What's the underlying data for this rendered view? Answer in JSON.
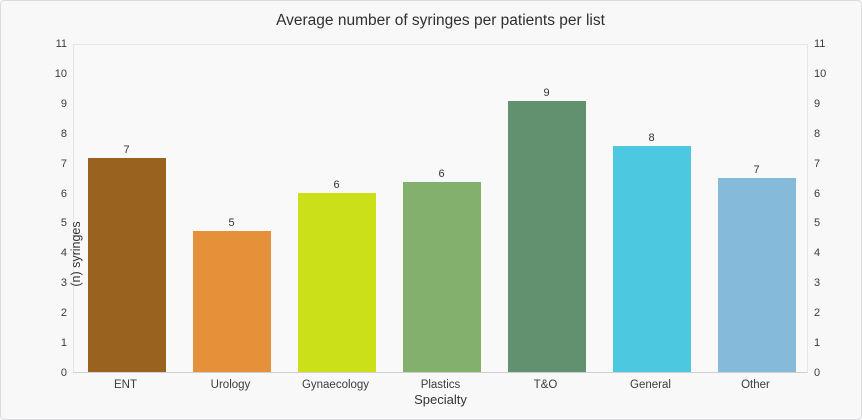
{
  "chart_data": {
    "type": "bar",
    "title": "Average number of syringes per patients per list",
    "xlabel": "Specialty",
    "ylabel": "(n) syringes",
    "categories": [
      "ENT",
      "Urology",
      "Gynaecology",
      "Plastics",
      "T&O",
      "General",
      "Other"
    ],
    "values": [
      7.15,
      4.7,
      6.0,
      6.35,
      9.05,
      7.55,
      6.5
    ],
    "bar_labels": [
      "7",
      "5",
      "6",
      "6",
      "9",
      "8",
      "7"
    ],
    "bar_colors": [
      "#99621E",
      "#E5913A",
      "#CBE019",
      "#83B16D",
      "#61916F",
      "#4DC8E1",
      "#85BADB"
    ],
    "ylim": [
      0,
      11
    ],
    "yticks": [
      0,
      1,
      2,
      3,
      4,
      5,
      6,
      7,
      8,
      9,
      10,
      11
    ],
    "grid": false,
    "legend": "none",
    "mirrored_y_axis": true
  },
  "style": {
    "card_background": "#f8f8f9",
    "card_border": "#dcdcdf",
    "plot_border": "#e6e6e9",
    "axis_line": "#cfcfd3",
    "text_color": "#333333"
  }
}
